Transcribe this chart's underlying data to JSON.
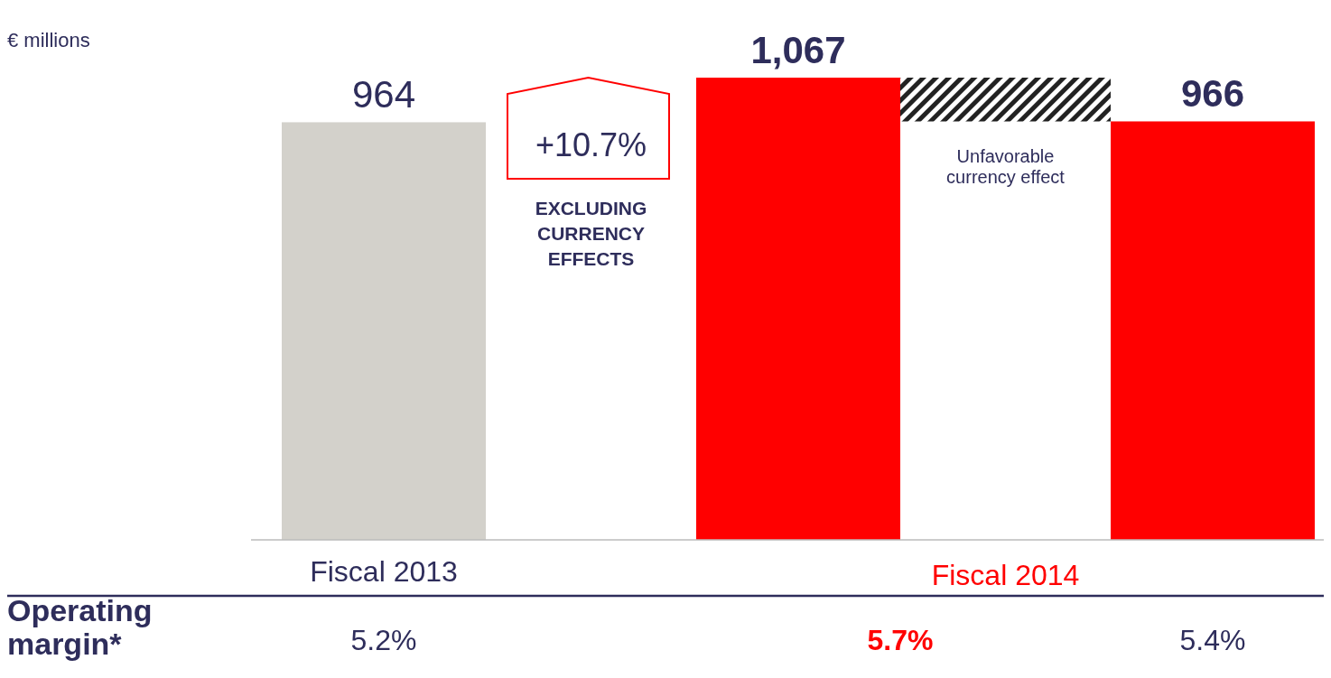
{
  "chart_data": {
    "type": "bar",
    "categories": [
      null,
      null,
      null
    ],
    "values": [
      964,
      1067,
      966
    ],
    "colors": [
      "#d3d1cb",
      "#ff0000",
      "#ff0000"
    ],
    "value_labels": [
      "964",
      "1,067",
      "966"
    ],
    "annotations": [
      "Fiscal 2013",
      "Fiscal 2014",
      "+10.7%",
      "EXCLUDING CURRENCY EFFECTS",
      "Unfavorable currency effect",
      "Operating margin*",
      "5.2%",
      "5.7%",
      "5.4%",
      "€ millions"
    ]
  }
}
